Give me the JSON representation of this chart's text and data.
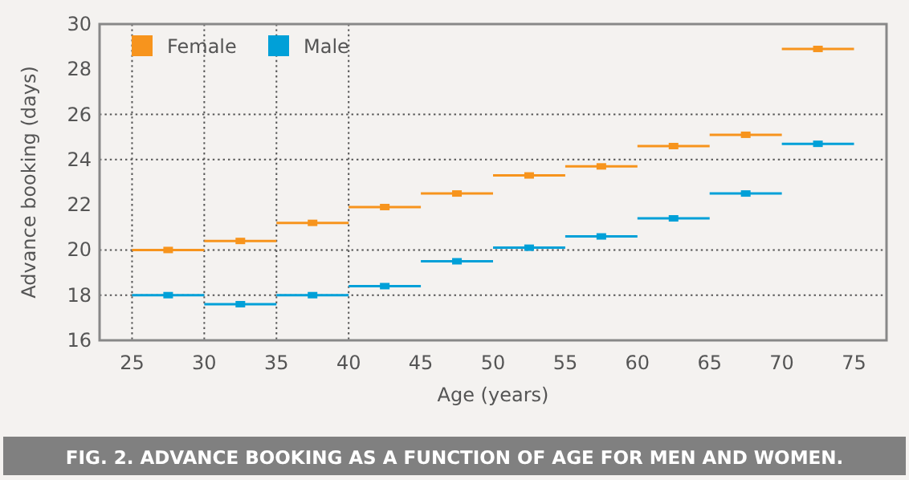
{
  "chart_data": {
    "type": "scatter",
    "title": "FIG. 2. ADVANCE BOOKING AS A FUNCTION OF AGE FOR MEN AND WOMEN.",
    "xlabel": "Age (years)",
    "ylabel": "Advance booking (days)",
    "x": [
      27.5,
      32.5,
      37.5,
      42.5,
      47.5,
      52.5,
      57.5,
      62.5,
      67.5,
      72.5
    ],
    "series": [
      {
        "name": "Female",
        "color": "#f7941d",
        "values": [
          20.0,
          20.4,
          21.2,
          21.9,
          22.5,
          23.3,
          23.7,
          24.6,
          25.1,
          28.9
        ],
        "xerrors": [
          2.5,
          2.5,
          2.5,
          2.5,
          2.5,
          2.5,
          2.5,
          2.5,
          2.5,
          2.5
        ]
      },
      {
        "name": "Male",
        "color": "#00a0d8",
        "values": [
          18.0,
          17.6,
          18.0,
          18.4,
          19.5,
          20.1,
          20.6,
          21.4,
          22.5,
          24.7
        ],
        "xerrors": [
          2.5,
          2.5,
          2.5,
          2.5,
          2.5,
          2.5,
          2.5,
          2.5,
          2.5,
          2.5
        ]
      }
    ],
    "marker": "square",
    "xlim": [
      22.75,
      77.25
    ],
    "ylim": [
      16,
      30
    ],
    "xticks": [
      25,
      30,
      35,
      40,
      45,
      50,
      55,
      60,
      65,
      70,
      75
    ],
    "yticks": [
      16,
      18,
      20,
      22,
      24,
      26,
      28,
      30
    ],
    "ref_lines": [
      {
        "axis": "y",
        "value": 18,
        "line_style": "dotted"
      },
      {
        "axis": "y",
        "value": 20,
        "line_style": "dotted"
      },
      {
        "axis": "y",
        "value": 24,
        "line_style": "dotted"
      },
      {
        "axis": "y",
        "value": 26,
        "line_style": "dotted"
      },
      {
        "axis": "x",
        "value": 25,
        "line_style": "dotted"
      },
      {
        "axis": "x",
        "value": 30,
        "line_style": "dotted"
      },
      {
        "axis": "x",
        "value": 35,
        "line_style": "dotted"
      },
      {
        "axis": "x",
        "value": 40,
        "line_style": "dotted"
      }
    ],
    "legend": "top left"
  }
}
